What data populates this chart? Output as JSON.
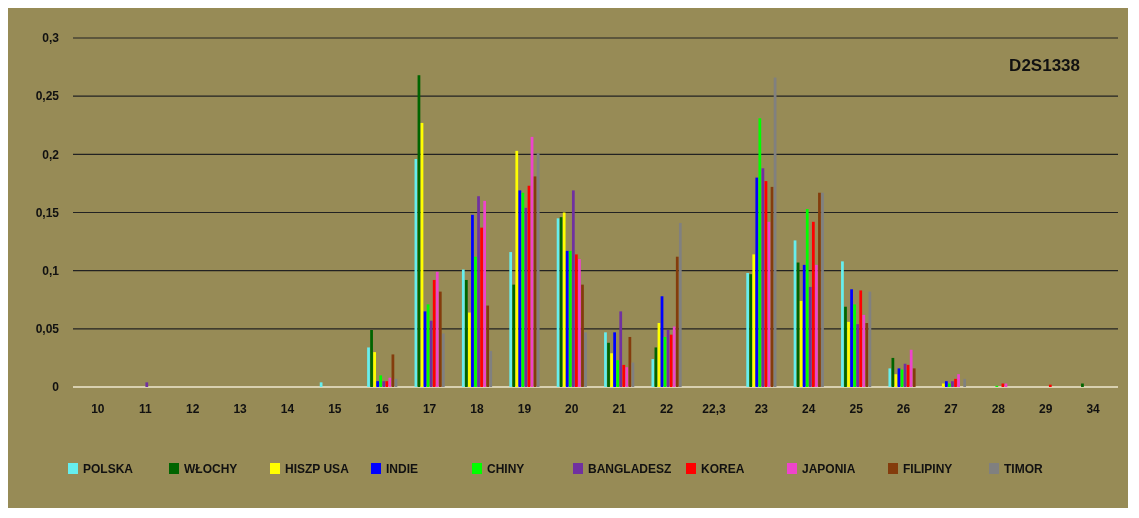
{
  "chart_data": {
    "type": "bar",
    "title": "D2S1338",
    "categories": [
      "10",
      "11",
      "12",
      "13",
      "14",
      "15",
      "16",
      "17",
      "18",
      "19",
      "20",
      "21",
      "22",
      "22,3",
      "23",
      "24",
      "25",
      "26",
      "27",
      "28",
      "29",
      "34"
    ],
    "series": [
      {
        "name": "POLSKA",
        "color": "#66eeee",
        "values": [
          null,
          null,
          null,
          null,
          null,
          0.004,
          0.034,
          0.196,
          0.101,
          0.116,
          0.145,
          0.047,
          0.024,
          null,
          0.098,
          0.126,
          0.108,
          0.016,
          null,
          null,
          null,
          null
        ]
      },
      {
        "name": "WŁOCHY",
        "color": "#006400",
        "values": [
          null,
          null,
          null,
          null,
          null,
          null,
          0.049,
          0.268,
          0.092,
          0.088,
          0.146,
          0.038,
          0.034,
          null,
          0.097,
          0.107,
          0.069,
          0.025,
          null,
          null,
          null,
          0.003
        ]
      },
      {
        "name": "HISZP USA",
        "color": "#ffff00",
        "values": [
          null,
          null,
          null,
          null,
          null,
          null,
          0.03,
          0.227,
          0.064,
          0.203,
          0.15,
          0.029,
          0.055,
          null,
          0.114,
          0.074,
          0.056,
          0.011,
          0.003,
          null,
          null,
          null
        ]
      },
      {
        "name": "INDIE",
        "color": "#0000ff",
        "values": [
          null,
          null,
          null,
          null,
          null,
          null,
          0.005,
          0.065,
          0.148,
          0.169,
          0.117,
          0.047,
          0.078,
          null,
          0.18,
          0.105,
          0.084,
          0.016,
          0.005,
          null,
          null,
          null
        ]
      },
      {
        "name": "CHINY",
        "color": "#00ff00",
        "values": [
          null,
          null,
          null,
          null,
          null,
          null,
          0.01,
          0.071,
          0.112,
          0.167,
          0.117,
          0.023,
          0.043,
          null,
          0.231,
          0.153,
          0.071,
          0.015,
          0.003,
          0.001,
          null,
          null
        ]
      },
      {
        "name": "BANGLADESZ",
        "color": "#7030a0",
        "values": [
          null,
          0.004,
          null,
          null,
          null,
          null,
          0.005,
          0.057,
          0.164,
          0.154,
          0.169,
          0.065,
          0.049,
          null,
          0.188,
          0.086,
          0.054,
          0.02,
          0.005,
          null,
          null,
          null
        ]
      },
      {
        "name": "KOREA",
        "color": "#ff0000",
        "values": [
          null,
          null,
          null,
          null,
          null,
          null,
          0.005,
          0.092,
          0.137,
          0.173,
          0.114,
          0.019,
          0.045,
          null,
          0.177,
          0.142,
          0.083,
          0.019,
          0.007,
          0.003,
          0.002,
          null
        ]
      },
      {
        "name": "JAPONIA",
        "color": "#ee44cc",
        "values": [
          null,
          null,
          null,
          null,
          null,
          null,
          0.008,
          0.099,
          0.16,
          0.215,
          0.11,
          0.017,
          0.052,
          null,
          0.142,
          0.105,
          0.062,
          0.032,
          0.011,
          0.003,
          null,
          null
        ]
      },
      {
        "name": "FILIPINY",
        "color": "#843c0c",
        "values": [
          null,
          null,
          null,
          null,
          null,
          null,
          0.028,
          0.082,
          0.07,
          0.181,
          0.088,
          0.043,
          0.112,
          null,
          0.172,
          0.167,
          0.055,
          0.016,
          null,
          null,
          null,
          null
        ]
      },
      {
        "name": "TIMOR",
        "color": "#808080",
        "values": [
          null,
          null,
          null,
          null,
          null,
          null,
          0.007,
          0.046,
          0.031,
          0.201,
          0.047,
          0.021,
          0.141,
          null,
          0.266,
          0.167,
          0.082,
          null,
          0.007,
          null,
          null,
          null
        ]
      }
    ],
    "ylim": [
      0,
      0.3
    ],
    "yticks": [
      0,
      {
        "value": 0.05,
        "label": "0,05"
      },
      {
        "value": 0.1,
        "label": "0,1"
      },
      {
        "value": 0.15,
        "label": "0,15"
      },
      {
        "value": 0.2,
        "label": "0,2"
      },
      {
        "value": 0.25,
        "label": "0,25"
      },
      {
        "value": 0.3,
        "label": "0,3"
      }
    ],
    "grid": "y",
    "legend": "bottom"
  }
}
